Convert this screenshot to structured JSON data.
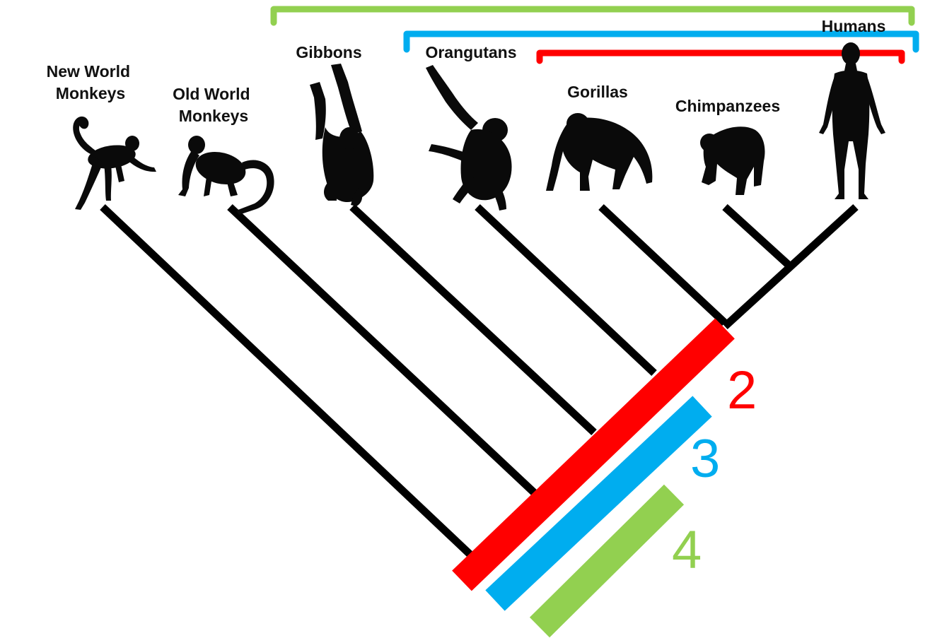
{
  "taxa": [
    {
      "id": "new-world-monkeys",
      "lines": [
        "New World",
        "Monkeys"
      ]
    },
    {
      "id": "old-world-monkeys",
      "lines": [
        "Old World",
        "Monkeys"
      ]
    },
    {
      "id": "gibbons",
      "lines": [
        "Gibbons"
      ]
    },
    {
      "id": "orangutans",
      "lines": [
        "Orangutans"
      ]
    },
    {
      "id": "gorillas",
      "lines": [
        "Gorillas"
      ]
    },
    {
      "id": "chimpanzees",
      "lines": [
        "Chimpanzees"
      ]
    },
    {
      "id": "humans",
      "lines": [
        "Humans"
      ]
    }
  ],
  "clades": [
    {
      "number": "2",
      "color": "#ff0000"
    },
    {
      "number": "3",
      "color": "#00adef"
    },
    {
      "number": "4",
      "color": "#92d050"
    }
  ],
  "colors": {
    "branch": "#000000",
    "silhouette": "#0a0a0a"
  }
}
